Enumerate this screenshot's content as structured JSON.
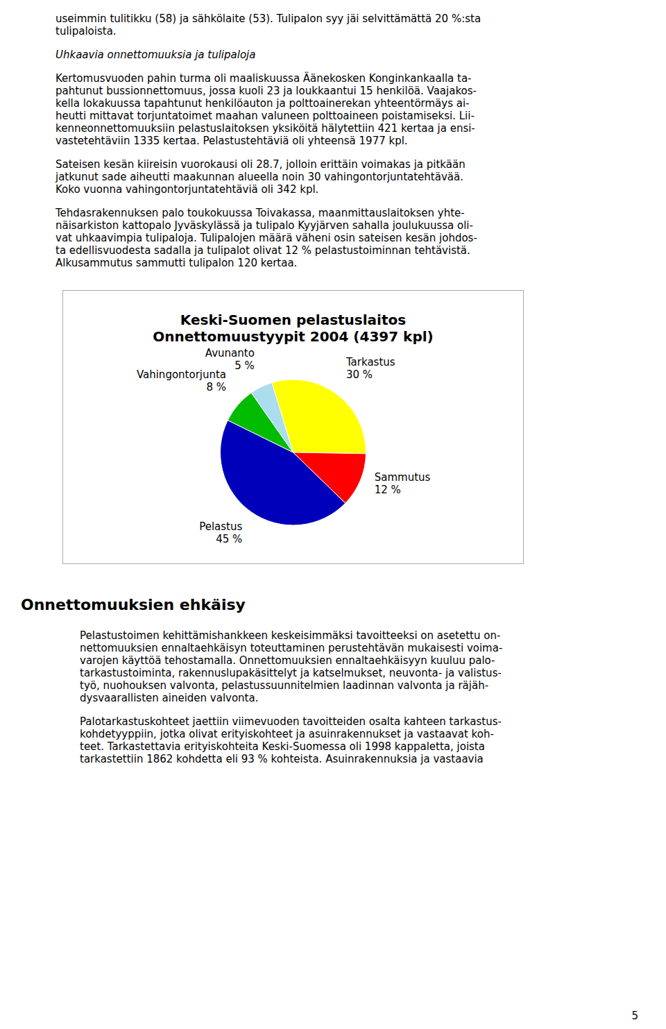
{
  "chart_data": {
    "type": "pie",
    "title": "Keski-Suomen pelastuslaitos",
    "subtitle": "Onnettomuustyypit 2004 (4397 kpl)",
    "categories": [
      "Tarkastus",
      "Sammutus",
      "Pelastus",
      "Vahingontorjunta",
      "Avunanto"
    ],
    "values": [
      30,
      12,
      45,
      8,
      5
    ],
    "value_labels": [
      "30 %",
      "12 %",
      "45 %",
      "8 %",
      "5 %"
    ],
    "colors": [
      "#FFFF00",
      "#FF0000",
      "#0000BB",
      "#00BB00",
      "#AADDEE"
    ],
    "data_labels": true,
    "annotations": [
      [
        "useimmin tulitikku (58) ja sähkölaite (53). Tulipalon syy jäi selvittämättä 20 %:sta",
        "tulipaloista."
      ],
      [
        "Uhkaavia onnettomuuksia ja tulipaloja"
      ],
      [
        "Kertomusvuoden pahin turma oli maaliskuussa Äänekosken Konginkankaalla ta-",
        "pahtunut bussionnettomuus, jossa kuoli 23 ja loukkaantui 15 henkilöä. Vaajakos-",
        "kella lokakuussa tapahtunut henkilöauton ja polttoainerekan yhteentörmäys ai-",
        "heutti mittavat torjuntatoimet maahan valuneen polttoaineen poistamiseksi. Lii-",
        "kenneonnettomuuksiin pelastuslaitoksen yksiköitä hälytettiin 421 kertaa ja ensi-",
        "vastetehtäviin 1335 kertaa. Pelastustehtäviä oli yhteensä 1977 kpl."
      ],
      [
        "Sateisen kesän kiireisin vuorokausi oli 28.7, jolloin erittäin voimakas ja pitkään",
        "jatkunut sade aiheutti maakunnan alueella noin 30 vahingontorjuntatehtävää.",
        "Koko vuonna vahingontorjuntatehtäviä oli 342 kpl."
      ],
      [
        "Tehdasrakennuksen palo toukokuussa Toivakassa, maanmittauslaitoksen yhte-",
        "näisarkiston kattopalo Jyväskylässä ja tulipalo Kyyjärven sahalla joulukuussa oli-",
        "vat uhkaavimpia tulipaloja. Tulipalojen määrä väheni osin sateisen kesän johdos-",
        "ta edellisvuodesta sadalla ja tulipalot olivat 12 % pelastustoiminnan tehtävistä.",
        "Alkusammutus sammutti tulipalon 120 kertaa."
      ],
      [
        "Onnettomuuksien ehkäisy"
      ],
      [
        "Pelastustoimen kehittämishankkeen keskeisimmäksi tavoitteeksi on asetettu on-",
        "nettomuuksien ennaltaehkäisyn toteuttaminen perustehtävän mukaisesti voima-",
        "varojen käyttöä tehostamalla. Onnettomuuksien ennaltaehkäisyyn kuuluu palo-",
        "tarkastustoiminta, rakennuslupakäsittelyt ja katselmukset, neuvonta- ja valistus-",
        "työ, nuohouksen valvonta, pelastussuunnitelmien laadinnan valvonta ja räjäh-",
        "dysvaarallisten aineiden valvonta."
      ],
      [
        "Palotarkastuskohteet jaettiin viimevuoden tavoitteiden osalta kahteen tarkastus-",
        "kohdetyyppiin, jotka olivat erityiskohteet ja asuinrakennukset ja vastaavat koh-",
        "teet. Tarkastettavia erityiskohteita Keski-Suomessa oli 1998 kappaletta, joista",
        "tarkastettiin 1862 kohdetta eli 93 % kohteista. Asuinrakennuksia ja vastaavia"
      ],
      [
        "5"
      ]
    ]
  }
}
